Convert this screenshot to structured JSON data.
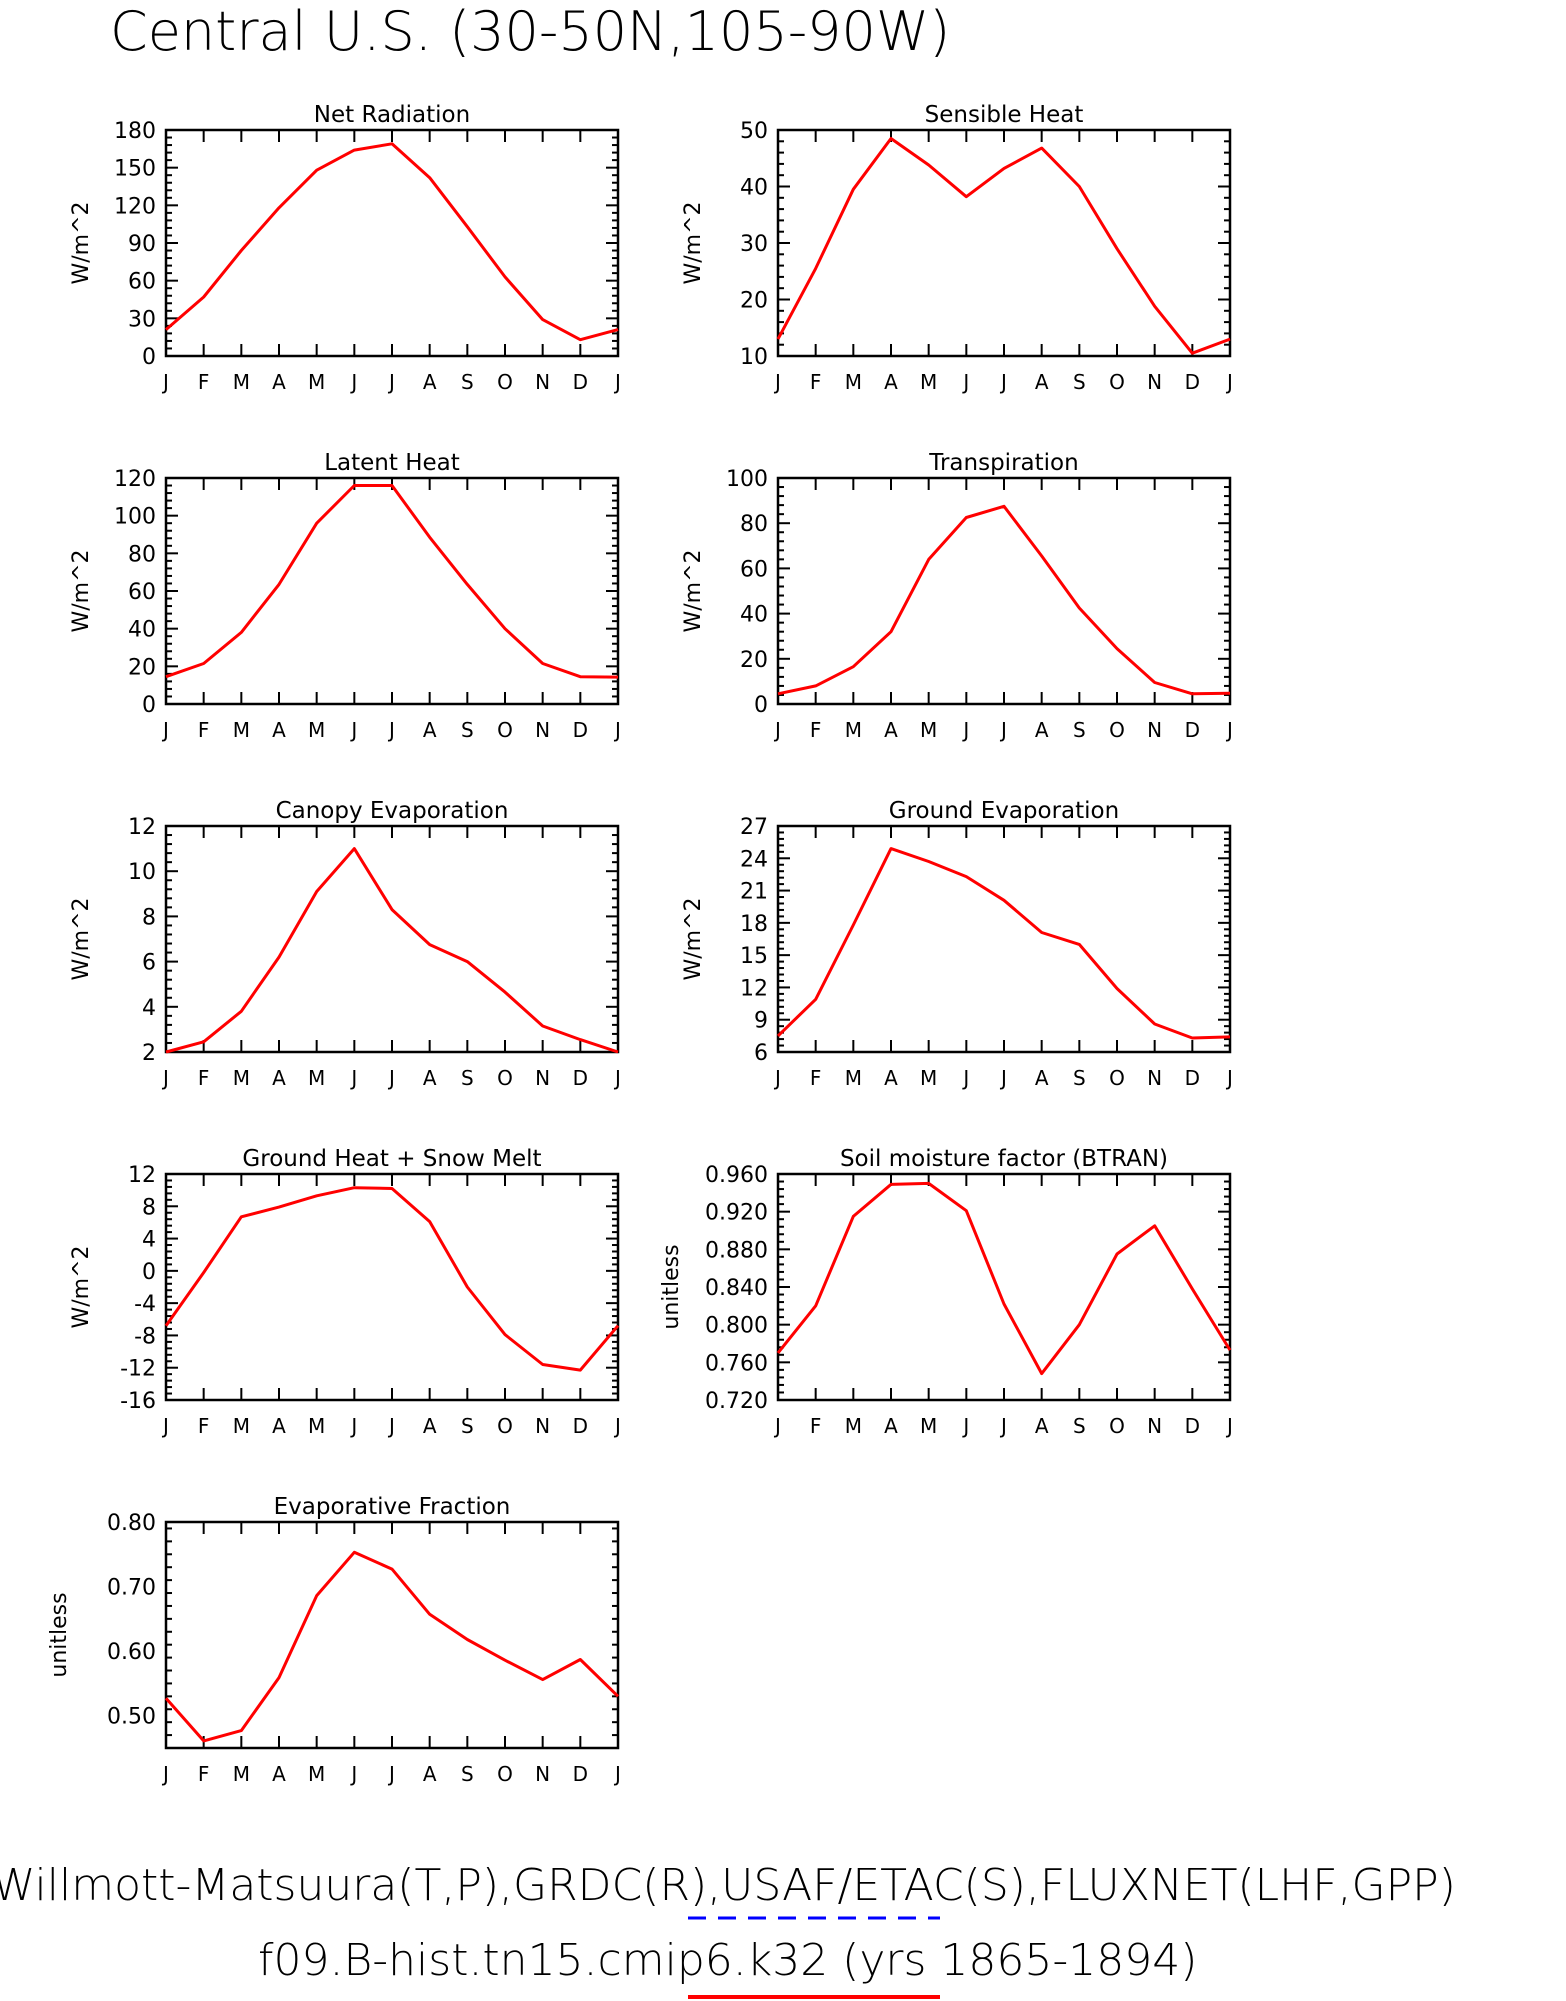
{
  "page_title": "Central U.S. (30-50N,105-90W)",
  "footer": {
    "line1": "Willmott-Matsuura(T,P),GRDC(R),USAF/ETAC(S),FLUXNET(LHF,GPP)",
    "line2": "f09.B-hist.tn15.cmip6.k32 (yrs 1865-1894)"
  },
  "colors": {
    "line": "#ff0000",
    "legend_obs": "#0000ff",
    "axis": "#000000"
  },
  "months": [
    "J",
    "F",
    "M",
    "A",
    "M",
    "J",
    "J",
    "A",
    "S",
    "O",
    "N",
    "D",
    "J"
  ],
  "chart_data": [
    {
      "type": "line",
      "title": "Net Radiation",
      "ylabel": "W/m^2",
      "ylim": [
        0,
        180
      ],
      "yticks": [
        0,
        30,
        60,
        90,
        120,
        150,
        180
      ],
      "ytick_labels": [
        "0",
        "30",
        "60",
        "90",
        "120",
        "150",
        "180"
      ],
      "values": [
        21,
        47,
        84,
        118,
        148,
        164,
        169,
        142,
        103,
        63,
        29,
        13,
        21
      ]
    },
    {
      "type": "line",
      "title": "Sensible Heat",
      "ylabel": "W/m^2",
      "ylim": [
        10,
        50
      ],
      "yticks": [
        10,
        20,
        30,
        40,
        50
      ],
      "ytick_labels": [
        "10",
        "20",
        "30",
        "40",
        "50"
      ],
      "values": [
        13,
        25.5,
        39.5,
        48.5,
        43.8,
        38.2,
        43.2,
        46.8,
        40,
        29,
        18.8,
        10.5,
        13
      ]
    },
    {
      "type": "line",
      "title": "Latent Heat",
      "ylabel": "W/m^2",
      "ylim": [
        0,
        120
      ],
      "yticks": [
        0,
        20,
        40,
        60,
        80,
        100,
        120
      ],
      "ytick_labels": [
        "0",
        "20",
        "40",
        "60",
        "80",
        "100",
        "120"
      ],
      "values": [
        14.5,
        21.5,
        38,
        63.5,
        96,
        116,
        116,
        88.5,
        63.5,
        40,
        21.5,
        14.5,
        14.3
      ]
    },
    {
      "type": "line",
      "title": "Transpiration",
      "ylabel": "W/m^2",
      "ylim": [
        0,
        100
      ],
      "yticks": [
        0,
        20,
        40,
        60,
        80,
        100
      ],
      "ytick_labels": [
        "0",
        "20",
        "40",
        "60",
        "80",
        "100"
      ],
      "values": [
        4.5,
        8,
        16.5,
        32,
        64,
        82.5,
        87.5,
        65.5,
        42.5,
        24.5,
        9.5,
        4.5,
        4.8
      ]
    },
    {
      "type": "line",
      "title": "Canopy Evaporation",
      "ylabel": "W/m^2",
      "ylim": [
        2,
        12
      ],
      "yticks": [
        2,
        4,
        6,
        8,
        10,
        12
      ],
      "ytick_labels": [
        "2",
        "4",
        "6",
        "8",
        "10",
        "12"
      ],
      "values": [
        2,
        2.45,
        3.8,
        6.2,
        9.1,
        11,
        8.3,
        6.75,
        6,
        4.65,
        3.15,
        2.55,
        2
      ]
    },
    {
      "type": "line",
      "title": "Ground Evaporation",
      "ylabel": "W/m^2",
      "ylim": [
        6,
        27
      ],
      "yticks": [
        6,
        9,
        12,
        15,
        18,
        21,
        24,
        27
      ],
      "ytick_labels": [
        "6",
        "9",
        "12",
        "15",
        "18",
        "21",
        "24",
        "27"
      ],
      "values": [
        7.5,
        10.9,
        17.8,
        24.9,
        23.7,
        22.3,
        20.1,
        17.1,
        16,
        11.9,
        8.6,
        7.3,
        7.4
      ]
    },
    {
      "type": "line",
      "title": "Ground Heat + Snow Melt",
      "ylabel": "W/m^2",
      "ylim": [
        -16,
        12
      ],
      "yticks": [
        -16,
        -12,
        -8,
        -4,
        0,
        4,
        8,
        12
      ],
      "ytick_labels": [
        "-16",
        "-12",
        "-8",
        "-4",
        "0",
        "4",
        "8",
        "12"
      ],
      "values": [
        -6.8,
        -0.2,
        6.7,
        7.9,
        9.3,
        10.3,
        10.2,
        6.1,
        -2,
        -7.9,
        -11.6,
        -12.3,
        -6.8
      ]
    },
    {
      "type": "line",
      "title": "Soil moisture factor (BTRAN)",
      "ylabel": "unitless",
      "ylim": [
        0.72,
        0.96
      ],
      "yticks": [
        0.72,
        0.76,
        0.8,
        0.84,
        0.88,
        0.92,
        0.96
      ],
      "ytick_labels": [
        "0.720",
        "0.760",
        "0.800",
        "0.840",
        "0.880",
        "0.920",
        "0.960"
      ],
      "values": [
        0.77,
        0.82,
        0.915,
        0.949,
        0.95,
        0.921,
        0.822,
        0.748,
        0.8,
        0.875,
        0.905,
        0.838,
        0.773
      ]
    },
    {
      "type": "line",
      "title": "Evaporative Fraction",
      "ylabel": "unitless",
      "ylim": [
        0.45,
        0.8
      ],
      "yticks": [
        0.5,
        0.6,
        0.7,
        0.8
      ],
      "ytick_labels": [
        "0.50",
        "0.60",
        "0.70",
        "0.80"
      ],
      "values": [
        0.527,
        0.461,
        0.477,
        0.559,
        0.686,
        0.753,
        0.727,
        0.657,
        0.618,
        0.586,
        0.556,
        0.587,
        0.53
      ]
    }
  ]
}
